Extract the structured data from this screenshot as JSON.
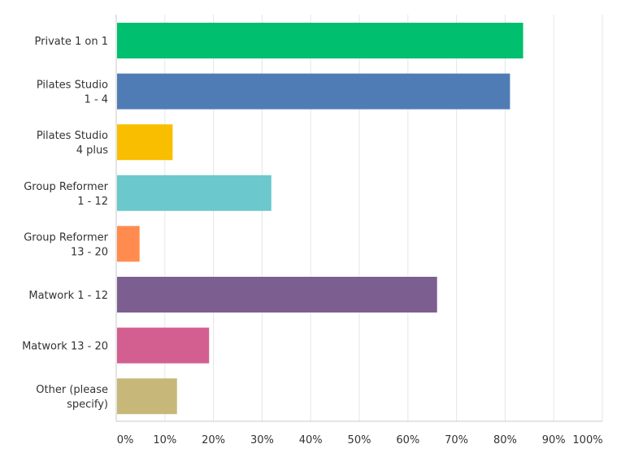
{
  "chart_data": {
    "type": "bar",
    "orientation": "horizontal",
    "categories": [
      [
        "Private 1 on 1"
      ],
      [
        "Pilates Studio",
        "1 - 4"
      ],
      [
        "Pilates Studio",
        "4 plus"
      ],
      [
        "Group Reformer",
        "1 - 12"
      ],
      [
        "Group Reformer",
        "13 - 20"
      ],
      [
        "Matwork 1 - 12"
      ],
      [
        "Matwork 13 - 20"
      ],
      [
        "Other (please",
        "specify)"
      ]
    ],
    "values": [
      83.7,
      81.0,
      11.6,
      31.9,
      4.8,
      66.0,
      19.1,
      12.5
    ],
    "colors": [
      "#00bf6f",
      "#507cb6",
      "#f9be00",
      "#6bc8cd",
      "#ff8b4f",
      "#7d5e90",
      "#d25f90",
      "#c7b879"
    ],
    "xticks": [
      0,
      10,
      20,
      30,
      40,
      50,
      60,
      70,
      80,
      90,
      100
    ],
    "xtick_labels": [
      "0%",
      "10%",
      "20%",
      "30%",
      "40%",
      "50%",
      "60%",
      "70%",
      "80%",
      "90%",
      "100%"
    ],
    "xlim": [
      0,
      100
    ],
    "grid": true,
    "title": "",
    "xlabel": "",
    "ylabel": "",
    "grid_color": "#e6e6e6",
    "axis_color": "#c8c8c8"
  }
}
